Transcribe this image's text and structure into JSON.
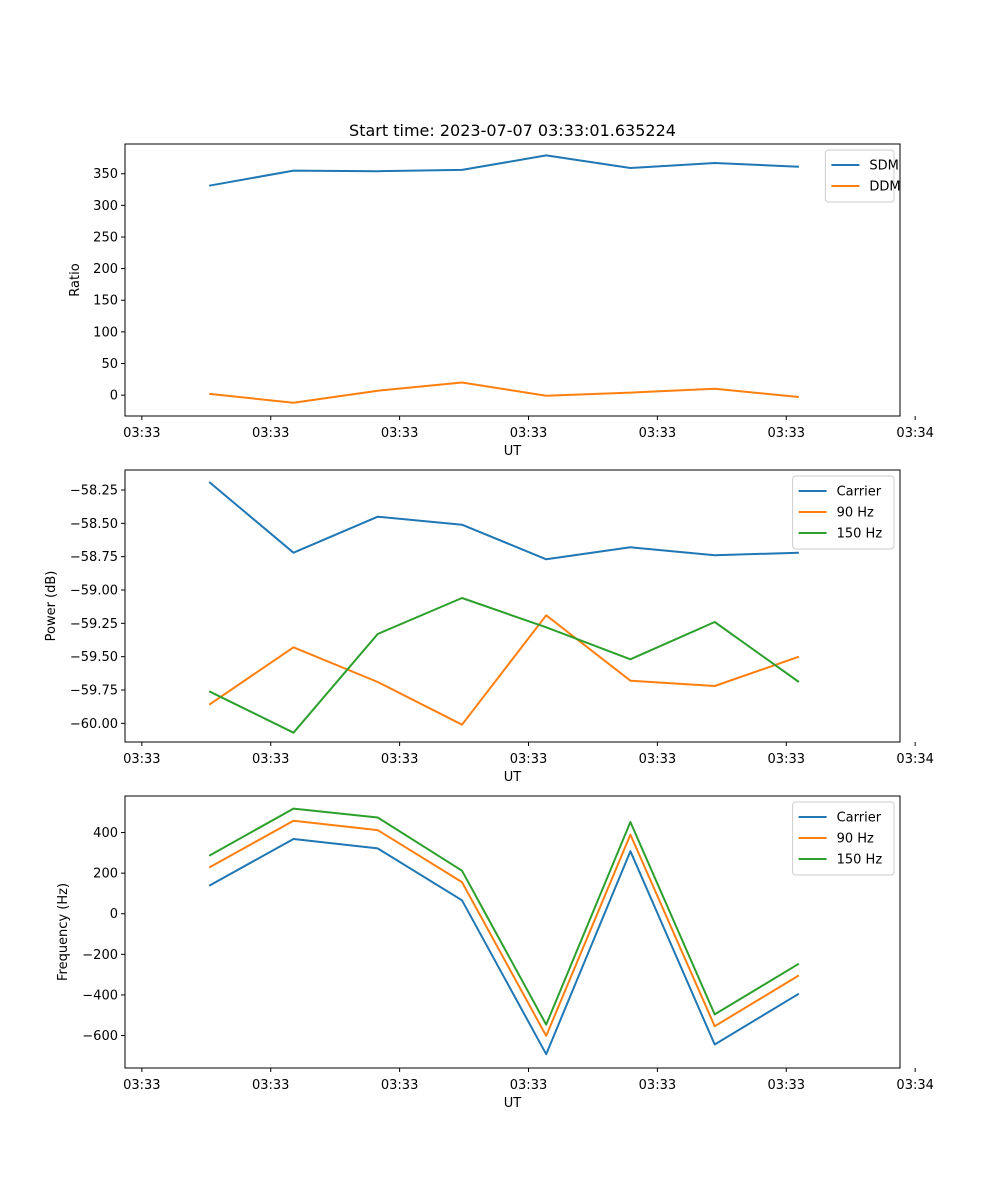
{
  "chart_data": [
    {
      "type": "line",
      "title": "Start time: 2023-07-07 03:33:01.635224",
      "xlabel": "UT",
      "ylabel": "Ratio",
      "x_tick_labels": [
        "03:33",
        "03:33",
        "03:33",
        "03:33",
        "03:33",
        "03:33",
        "03:34"
      ],
      "xlim": [
        0,
        9.2
      ],
      "x": [
        1,
        2,
        3,
        4,
        5,
        6,
        7,
        8
      ],
      "ylim": [
        -33,
        397
      ],
      "yticks": [
        0,
        50,
        100,
        150,
        200,
        250,
        300,
        350
      ],
      "ytick_labels": [
        "0",
        "50",
        "100",
        "150",
        "200",
        "250",
        "300",
        "350"
      ],
      "legend_position": "top-right",
      "series": [
        {
          "name": "SDM",
          "color": "#1f77b4",
          "values": [
            331,
            355,
            354,
            356,
            379,
            359,
            367,
            361
          ]
        },
        {
          "name": "DDM",
          "color": "#ff7f0e",
          "values": [
            2,
            -12,
            7,
            20,
            -1,
            4,
            10,
            -3
          ]
        }
      ]
    },
    {
      "type": "line",
      "title": "",
      "xlabel": "UT",
      "ylabel": "Power (dB)",
      "x_tick_labels": [
        "03:33",
        "03:33",
        "03:33",
        "03:33",
        "03:33",
        "03:33",
        "03:34"
      ],
      "xlim": [
        0,
        9.2
      ],
      "x": [
        1,
        2,
        3,
        4,
        5,
        6,
        7,
        8
      ],
      "ylim": [
        -60.14,
        -58.1
      ],
      "yticks": [
        -60.0,
        -59.75,
        -59.5,
        -59.25,
        -59.0,
        -58.75,
        -58.5,
        -58.25
      ],
      "ytick_labels": [
        "−60.00",
        "−59.75",
        "−59.50",
        "−59.25",
        "−59.00",
        "−58.75",
        "−58.50",
        "−58.25"
      ],
      "legend_position": "top-right",
      "series": [
        {
          "name": "Carrier",
          "color": "#1f77b4",
          "values": [
            -58.19,
            -58.72,
            -58.45,
            -58.51,
            -58.77,
            -58.68,
            -58.74,
            -58.72
          ]
        },
        {
          "name": "90 Hz",
          "color": "#ff7f0e",
          "values": [
            -59.86,
            -59.43,
            -59.69,
            -60.01,
            -59.19,
            -59.68,
            -59.72,
            -59.5
          ]
        },
        {
          "name": "150 Hz",
          "color": "#2ca02c",
          "values": [
            -59.76,
            -60.07,
            -59.33,
            -59.06,
            -59.28,
            -59.52,
            -59.24,
            -59.69
          ]
        }
      ]
    },
    {
      "type": "line",
      "title": "",
      "xlabel": "UT",
      "ylabel": "Frequency (Hz)",
      "x_tick_labels": [
        "03:33",
        "03:33",
        "03:33",
        "03:33",
        "03:33",
        "03:33",
        "03:34"
      ],
      "xlim": [
        0,
        9.2
      ],
      "x": [
        1,
        2,
        3,
        4,
        5,
        6,
        7,
        8
      ],
      "ylim": [
        -760,
        580
      ],
      "yticks": [
        -600,
        -400,
        -200,
        0,
        200,
        400
      ],
      "ytick_labels": [
        "−600",
        "−400",
        "−200",
        "0",
        "200",
        "400"
      ],
      "legend_position": "top-right",
      "series": [
        {
          "name": "Carrier",
          "color": "#1f77b4",
          "values": [
            138,
            368,
            322,
            66,
            -692,
            308,
            -644,
            -394
          ]
        },
        {
          "name": "90 Hz",
          "color": "#ff7f0e",
          "values": [
            228,
            458,
            412,
            156,
            -602,
            390,
            -554,
            -304
          ]
        },
        {
          "name": "150 Hz",
          "color": "#2ca02c",
          "values": [
            286,
            518,
            474,
            212,
            -546,
            452,
            -496,
            -246
          ]
        }
      ]
    }
  ]
}
